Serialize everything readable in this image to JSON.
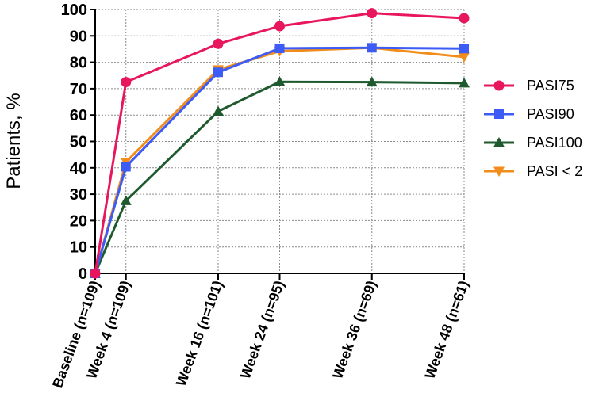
{
  "chart_data": {
    "type": "line",
    "ylabel": "Patients, %",
    "xlabel": "",
    "ylim": [
      0,
      100
    ],
    "yticks": [
      0,
      10,
      20,
      30,
      40,
      50,
      60,
      70,
      80,
      90,
      100
    ],
    "grid": "dotted",
    "legend_position": "right",
    "x": [
      0,
      4,
      16,
      24,
      36,
      48
    ],
    "categories": [
      "Baseline (n=109)",
      "Week 4 (n=109)",
      "Week 16 (n=101)",
      "Week 24 (n=95)",
      "Week 36 (n=69)",
      "Week 48 (n=61)"
    ],
    "series": [
      {
        "name": "PASI75",
        "color": "#e8175d",
        "marker": "circle",
        "values": [
          0,
          72.5,
          87,
          93.7,
          98.6,
          96.7
        ]
      },
      {
        "name": "PASI90",
        "color": "#3d5cf5",
        "marker": "square",
        "values": [
          0,
          40.4,
          76.2,
          85.3,
          85.5,
          85.2
        ]
      },
      {
        "name": "PASI100",
        "color": "#1e5a2e",
        "marker": "triangle-up",
        "values": [
          0,
          27.5,
          61.4,
          72.6,
          72.5,
          72.1
        ]
      },
      {
        "name": "PASI < 2",
        "color": "#f28c1a",
        "marker": "triangle-down",
        "values": [
          0,
          42.2,
          77.2,
          84.2,
          85.5,
          82
        ]
      }
    ]
  }
}
